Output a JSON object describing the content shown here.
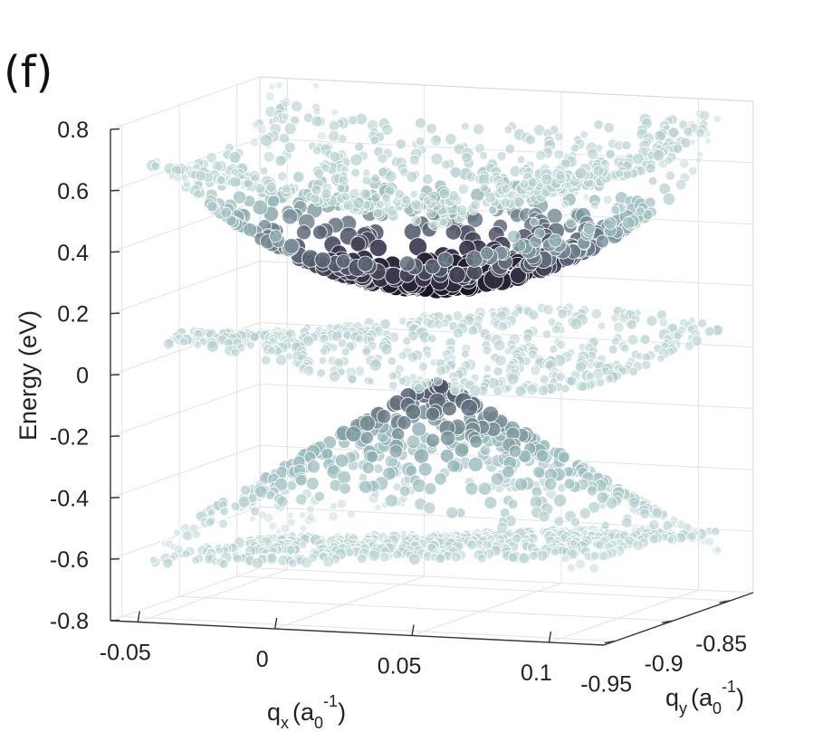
{
  "panel_label": "(f)",
  "chart_data": {
    "type": "scatter",
    "subtype": "3d-band-structure",
    "title": "",
    "zlabel": "Energy  (eV)",
    "xlabel": {
      "main": "q",
      "sub": "x",
      "unit": "(a",
      "unit_sub": "0",
      "unit_sup": "-1",
      "close": ")"
    },
    "ylabel": {
      "main": "q",
      "sub": "y",
      "unit": "(a",
      "unit_sub": "0",
      "unit_sup": "-1",
      "close": ")"
    },
    "x_ticks": [
      "-0.05",
      "0",
      "0.05",
      "0.1"
    ],
    "y_ticks": [
      "-0.95",
      "-0.9",
      "-0.85"
    ],
    "z_ticks": [
      "0.8",
      "0.6",
      "0.4",
      "0.2",
      "0",
      "-0.2",
      "-0.4",
      "-0.6",
      "-0.8"
    ],
    "xlim": [
      -0.06,
      0.12
    ],
    "ylim": [
      -0.96,
      -0.83
    ],
    "zlim": [
      -0.8,
      0.8
    ],
    "grid": true,
    "colors": {
      "light": "#d3e6e5",
      "mid": "#93b7b8",
      "dark": "#3c3850",
      "darkest": "#120e1c"
    },
    "bands": [
      {
        "center_energy": 0.62,
        "kind": "upper-cone"
      },
      {
        "center_energy": 0.26,
        "kind": "conduction",
        "weight": "high"
      },
      {
        "center_energy": 0.05,
        "kind": "flat"
      },
      {
        "center_energy": -0.05,
        "kind": "dirac",
        "weight": "medium"
      },
      {
        "center_energy": -0.62,
        "kind": "lower-valence"
      }
    ]
  }
}
